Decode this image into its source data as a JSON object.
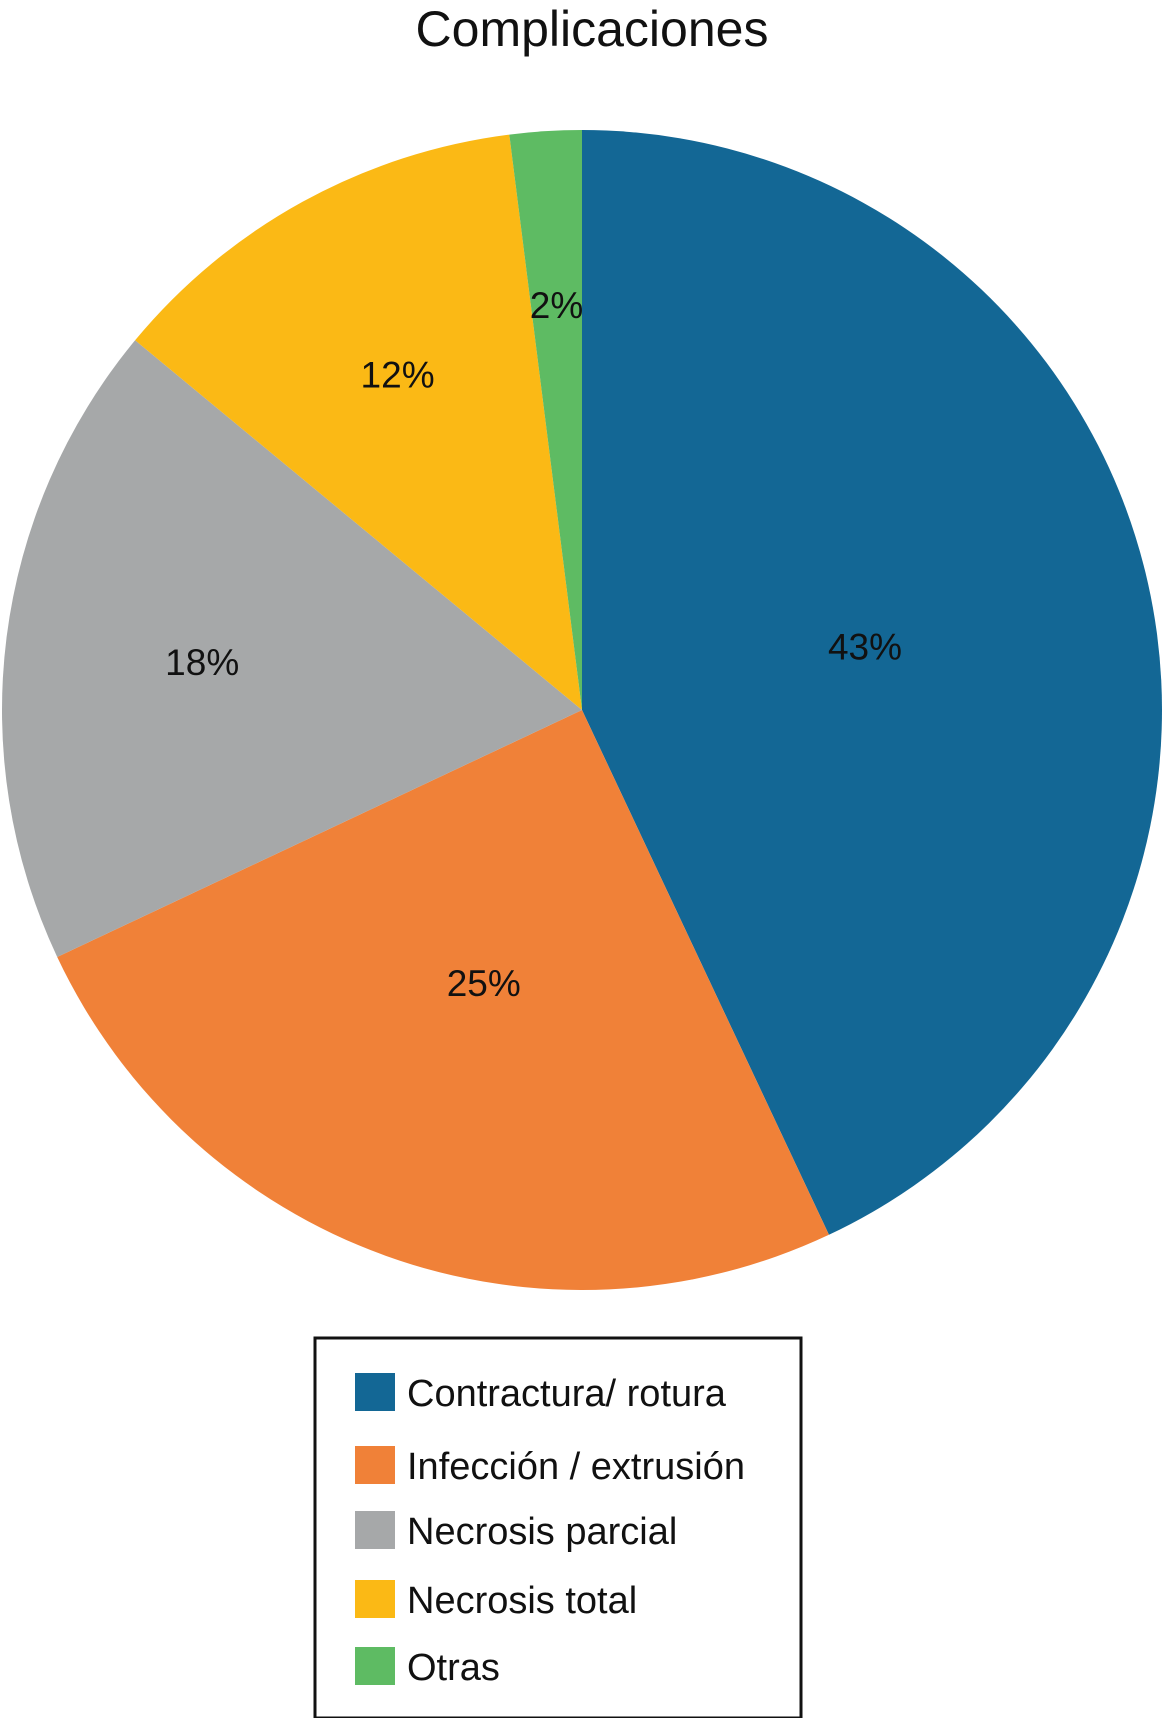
{
  "chart_data": {
    "type": "pie",
    "title": "Complicaciones",
    "slices": [
      {
        "name": "Contractura/ rotura",
        "value": 43,
        "label": "43%",
        "color": "#136795"
      },
      {
        "name": "Infección / extrusión",
        "value": 25,
        "label": "25%",
        "color": "#f08138"
      },
      {
        "name": "Necrosis parcial",
        "value": 18,
        "label": "18%",
        "color": "#a6a8a9"
      },
      {
        "name": "Necrosis total",
        "value": 12,
        "label": "12%",
        "color": "#fbb915"
      },
      {
        "name": "Otras",
        "value": 2,
        "label": "2%",
        "color": "#5ebb63"
      }
    ],
    "start_angle_deg": 0,
    "direction": "clockwise",
    "legend_placement": "bottom-center"
  }
}
